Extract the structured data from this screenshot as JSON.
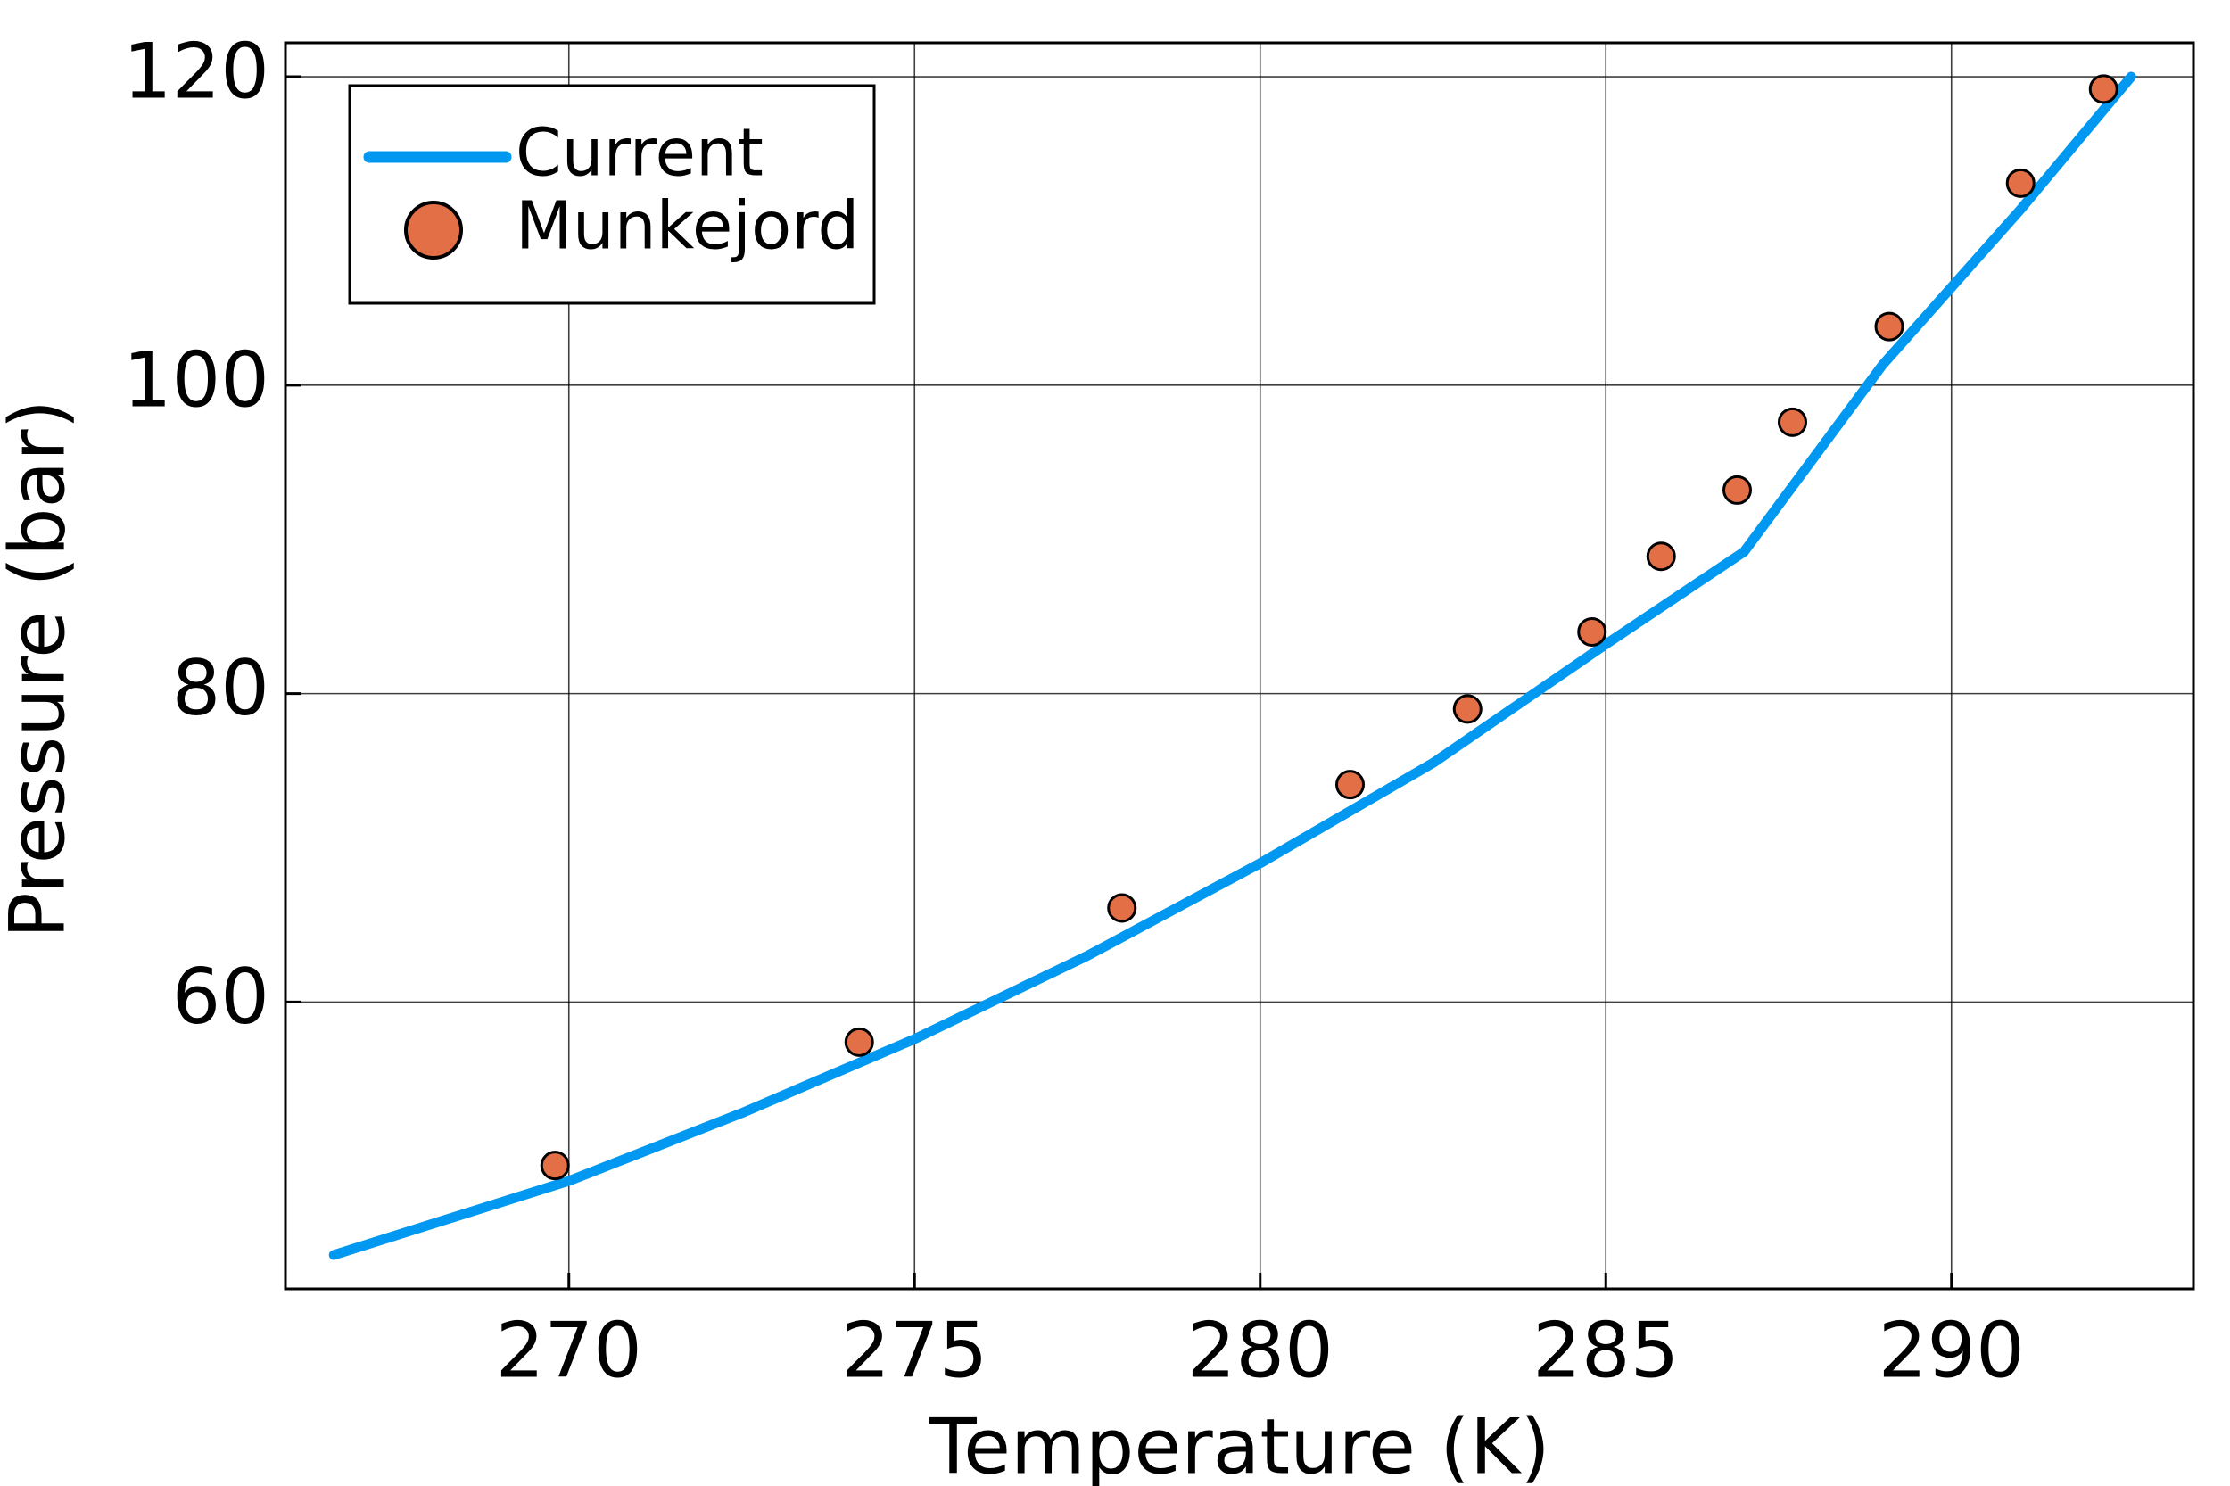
{
  "chart_data": {
    "type": "line",
    "xlabel": "Temperature (K)",
    "ylabel": "Pressure (bar)",
    "xlim": [
      265.9,
      293.5
    ],
    "ylim": [
      41.4,
      122.2
    ],
    "xticks": [
      270,
      275,
      280,
      285,
      290
    ],
    "yticks": [
      60,
      80,
      100,
      120
    ],
    "grid": true,
    "legend": "upper left",
    "series": [
      {
        "name": "Current",
        "color": "#0098f0",
        "style": "line",
        "x": [
          266.6,
          270,
          272.5,
          275,
          277.5,
          280,
          282.5,
          285,
          285.6,
          287,
          289,
          291,
          292.6
        ],
        "values": [
          43.6,
          48.4,
          52.8,
          57.6,
          63.0,
          69.0,
          75.5,
          83.2,
          85.0,
          89.2,
          101.3,
          111.4,
          120.0
        ]
      },
      {
        "name": "Munkejord",
        "color": "#e26f46",
        "style": "scatter",
        "x": [
          269.8,
          274.2,
          278.0,
          281.3,
          283.0,
          284.8,
          285.8,
          286.9,
          287.7,
          289.1,
          291.0,
          292.2
        ],
        "values": [
          49.4,
          57.4,
          66.1,
          74.1,
          79.0,
          84.0,
          88.9,
          93.2,
          97.6,
          103.8,
          113.1,
          119.2
        ]
      }
    ]
  }
}
